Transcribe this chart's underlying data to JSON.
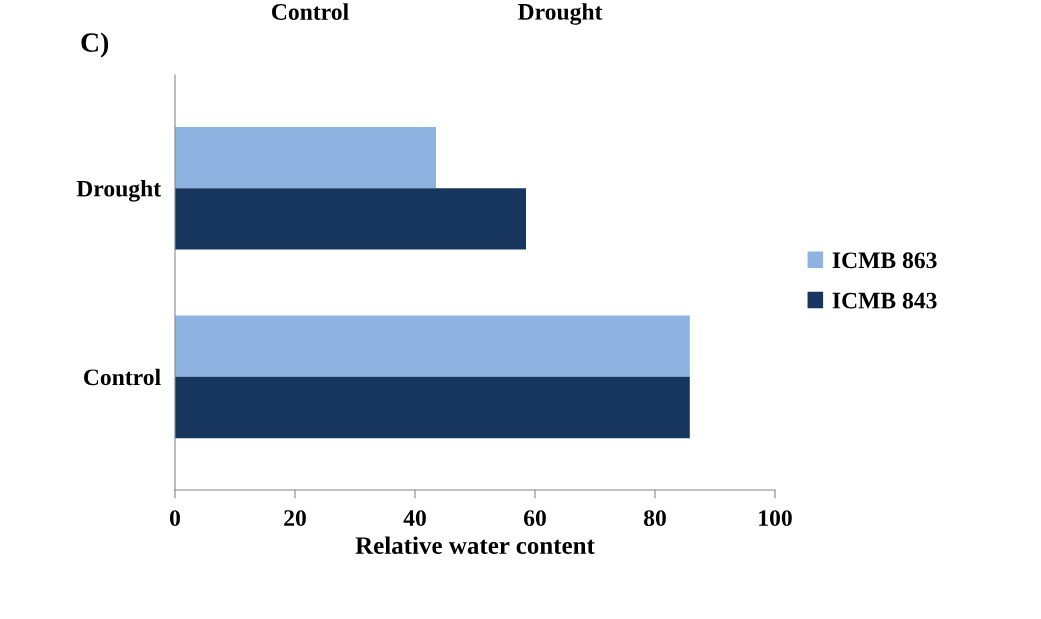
{
  "chart_data": {
    "type": "bar",
    "orientation": "horizontal",
    "title": "C)",
    "xlabel": "Relative water content",
    "annotations": [
      "Control",
      "Drought"
    ],
    "categories": [
      "Drought",
      "Control"
    ],
    "series": [
      {
        "name": "ICMB 863",
        "color": "#8eb3e0",
        "values": [
          43.5,
          85.8
        ]
      },
      {
        "name": "ICMB 843",
        "color": "#17365d",
        "values": [
          58.5,
          85.8
        ]
      }
    ],
    "xlim": [
      0,
      100
    ],
    "xticks": [
      0,
      20,
      40,
      60,
      80,
      100
    ],
    "grid": false,
    "legend": "right"
  }
}
